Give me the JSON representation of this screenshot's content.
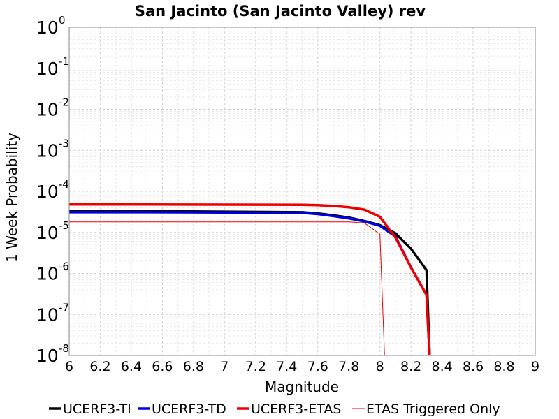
{
  "chart_data": {
    "type": "line",
    "title": "San Jacinto (San Jacinto Valley) rev",
    "xlabel": "Magnitude",
    "ylabel": "1 Week Probability",
    "xlim": [
      6,
      9
    ],
    "ylim": [
      1e-08,
      1
    ],
    "y_scale": "log",
    "grid": true,
    "legend_position": "bottom",
    "x_ticks": [
      "6",
      "6.2",
      "6.4",
      "6.6",
      "6.8",
      "7",
      "7.2",
      "7.4",
      "7.6",
      "7.8",
      "8",
      "8.2",
      "8.4",
      "8.6",
      "8.8",
      "9"
    ],
    "y_ticks": [
      {
        "base": "10",
        "exp": "0",
        "value": 1
      },
      {
        "base": "10",
        "exp": "-1",
        "value": 0.1
      },
      {
        "base": "10",
        "exp": "-2",
        "value": 0.01
      },
      {
        "base": "10",
        "exp": "-3",
        "value": 0.001
      },
      {
        "base": "10",
        "exp": "-4",
        "value": 0.0001
      },
      {
        "base": "10",
        "exp": "-5",
        "value": 1e-05
      },
      {
        "base": "10",
        "exp": "-6",
        "value": 1e-06
      },
      {
        "base": "10",
        "exp": "-7",
        "value": 1e-07
      },
      {
        "base": "10",
        "exp": "-8",
        "value": 1e-08
      }
    ],
    "series": [
      {
        "name": "UCERF3-TI",
        "color": "#000000",
        "line_width": 3.5,
        "x": [
          6.0,
          6.5,
          7.0,
          7.5,
          7.6,
          7.7,
          7.8,
          7.9,
          8.0,
          8.1,
          8.2,
          8.3,
          8.32
        ],
        "y": [
          3.3e-05,
          3.3e-05,
          3.2e-05,
          3.1e-05,
          2.9e-05,
          2.6e-05,
          2.3e-05,
          1.9e-05,
          1.5e-05,
          9.5e-06,
          4e-06,
          1.2e-06,
          1e-08
        ]
      },
      {
        "name": "UCERF3-TD",
        "color": "#0000dd",
        "line_width": 3.5,
        "x": [
          6.0,
          6.5,
          7.0,
          7.5,
          7.6,
          7.7,
          7.8,
          7.9,
          8.0,
          8.1,
          8.2,
          8.3,
          8.32
        ],
        "y": [
          3.1e-05,
          3.1e-05,
          3.05e-05,
          3e-05,
          2.8e-05,
          2.5e-05,
          2.2e-05,
          1.85e-05,
          1.45e-05,
          8e-06,
          1.4e-06,
          3e-07,
          1e-08
        ]
      },
      {
        "name": "UCERF3-ETAS",
        "color": "#ee0000",
        "line_width": 3.5,
        "x": [
          6.0,
          6.5,
          7.0,
          7.5,
          7.6,
          7.7,
          7.8,
          7.9,
          8.0,
          8.1,
          8.2,
          8.3,
          8.32
        ],
        "y": [
          4.8e-05,
          4.8e-05,
          4.75e-05,
          4.7e-05,
          4.6e-05,
          4.4e-05,
          4.1e-05,
          3.6e-05,
          2.4e-05,
          7.5e-06,
          1.4e-06,
          3e-07,
          1e-08
        ]
      },
      {
        "name": "ETAS Triggered Only",
        "color": "#ee0000",
        "line_width": 1,
        "x": [
          6.0,
          6.5,
          7.0,
          7.5,
          7.8,
          7.9,
          8.0,
          8.03
        ],
        "y": [
          1.8e-05,
          1.8e-05,
          1.8e-05,
          1.8e-05,
          1.8e-05,
          1.7e-05,
          9e-06,
          1e-08
        ]
      }
    ]
  }
}
